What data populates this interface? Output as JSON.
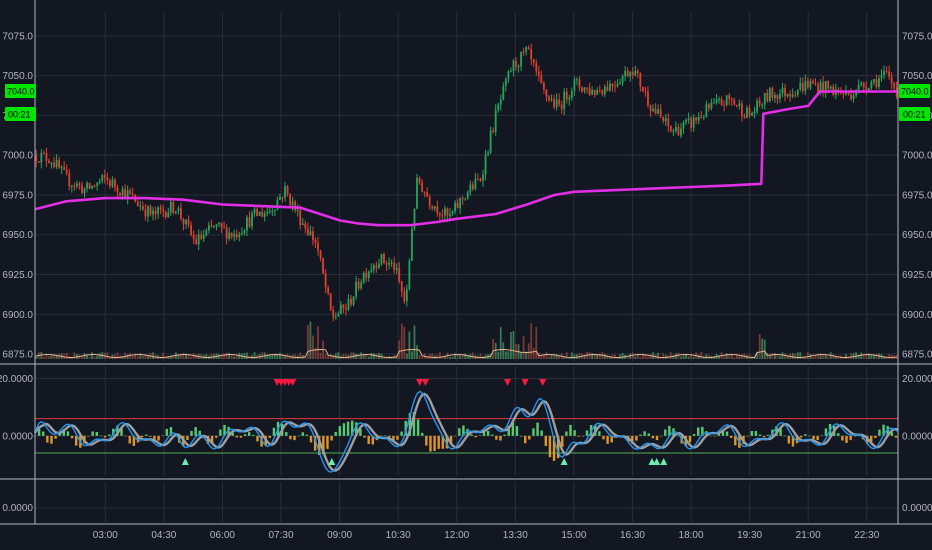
{
  "colors": {
    "background": "#131722",
    "grid": "#2a2e39",
    "separator": "#b2b5be",
    "candle_up": "#26a65b",
    "candle_down": "#e0402f",
    "vwap": "#e22ee6",
    "volume_line": "#e6b08a",
    "osc_fast": "#2196f3",
    "osc_slow": "#9e9e9e",
    "hist_pos": "#5de07a",
    "hist_neg": "#f5a623",
    "overbought": "#e53935",
    "oversold": "#4caf50",
    "marker_sell": "#ff1744",
    "marker_buy": "#69f0ae",
    "price_tag": "#00e600"
  },
  "price_tags": {
    "last_price": "7040.0",
    "countdown": "00:21"
  },
  "chart_data": [
    {
      "type": "candlestick",
      "panel": "price",
      "ylim": [
        6870,
        7090
      ],
      "y_ticks": [
        "7075.0",
        "7050.0",
        "7025.0",
        "7000.0",
        "6975.0",
        "6950.0",
        "6925.0",
        "6900.0",
        "6875.0"
      ],
      "y_tick_values": [
        7075,
        7050,
        7025,
        7000,
        6975,
        6950,
        6925,
        6900,
        6875
      ],
      "x_ticks": [
        "03:00",
        "04:30",
        "06:00",
        "07:30",
        "09:00",
        "10:30",
        "12:00",
        "13:30",
        "15:00",
        "16:30",
        "18:00",
        "19:30",
        "21:00",
        "22:30"
      ],
      "x_tick_hours": [
        3,
        4.5,
        6,
        7.5,
        9,
        10.5,
        12,
        13.5,
        15,
        16.5,
        18,
        19.5,
        21,
        22.5
      ],
      "x_range_hours": [
        1.2,
        23.3
      ],
      "price_path": {
        "hours": [
          1.2,
          1.6,
          2.0,
          2.5,
          3.0,
          3.6,
          4.2,
          4.8,
          5.3,
          5.8,
          6.3,
          6.8,
          7.2,
          7.6,
          8.0,
          8.4,
          8.8,
          9.2,
          9.6,
          10.0,
          10.4,
          10.7,
          10.85,
          11.0,
          11.3,
          11.8,
          12.2,
          12.6,
          13.0,
          13.4,
          13.8,
          14.2,
          14.6,
          15.0,
          15.5,
          16.0,
          16.5,
          17.0,
          17.5,
          18.0,
          18.5,
          19.0,
          19.5,
          20.0,
          20.5,
          21.0,
          21.5,
          22.0,
          22.5,
          23.0,
          23.3
        ],
        "values": [
          7000,
          6998,
          6985,
          6978,
          6985,
          6975,
          6962,
          6968,
          6945,
          6955,
          6950,
          6962,
          6965,
          6978,
          6960,
          6945,
          6898,
          6905,
          6925,
          6935,
          6930,
          6905,
          6955,
          6985,
          6972,
          6960,
          6975,
          6985,
          7025,
          7055,
          7065,
          7040,
          7030,
          7045,
          7040,
          7045,
          7055,
          7030,
          7015,
          7020,
          7030,
          7035,
          7025,
          7038,
          7040,
          7045,
          7042,
          7038,
          7045,
          7050,
          7040
        ]
      },
      "vwap": {
        "hours": [
          1.2,
          2.0,
          3.0,
          4.0,
          5.0,
          6.0,
          7.0,
          8.0,
          8.5,
          9.0,
          9.5,
          10.0,
          10.8,
          11.5,
          12.0,
          13.0,
          13.8,
          14.5,
          15.0,
          16.0,
          17.0,
          18.0,
          19.0,
          19.8,
          19.85,
          20.5,
          21.0,
          21.3,
          22.0,
          23.3
        ],
        "values": [
          6966,
          6971,
          6973,
          6973,
          6972,
          6969,
          6968,
          6967,
          6963,
          6959,
          6957,
          6956,
          6956,
          6958,
          6960,
          6963,
          6969,
          6975,
          6977,
          6978,
          6979,
          6980,
          6981,
          6982,
          7026,
          7029,
          7031,
          7040,
          7040,
          7040
        ]
      }
    },
    {
      "type": "histogram",
      "panel": "volume",
      "series": [
        {
          "name": "",
          "description": "volume bars with moving average line"
        }
      ]
    },
    {
      "type": "line",
      "panel": "oscillator",
      "ylim": [
        -14,
        24
      ],
      "y_ticks": [
        "20.0000",
        "0.0000"
      ],
      "y_tick_values": [
        20,
        0
      ],
      "overbought_level": 6,
      "oversold_level": -6,
      "series": [
        {
          "name": "",
          "role": "fast"
        },
        {
          "name": "",
          "role": "slow"
        },
        {
          "name": "",
          "role": "histogram"
        }
      ],
      "sell_marker_hours": [
        7.4,
        7.5,
        7.6,
        7.7,
        7.8,
        11.05,
        11.2,
        13.3,
        13.75,
        14.2
      ],
      "buy_marker_hours": [
        5.05,
        8.8,
        14.75,
        17.0,
        17.12,
        17.3
      ]
    },
    {
      "type": "line",
      "panel": "empty",
      "y_ticks": [
        "0.0000"
      ],
      "y_tick_values": [
        0
      ]
    }
  ]
}
